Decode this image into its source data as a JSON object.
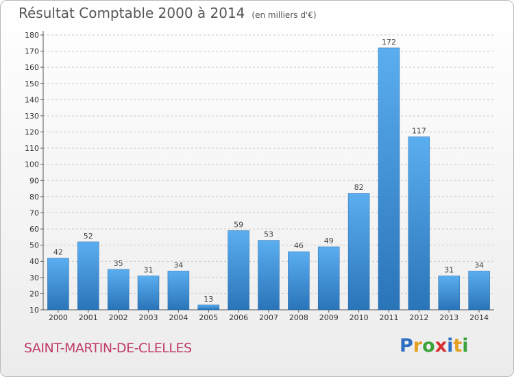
{
  "chart_data": {
    "type": "bar",
    "title": "Résultat Comptable 2000 à 2014",
    "unit": "(en milliers d'€)",
    "categories": [
      "2000",
      "2001",
      "2002",
      "2003",
      "2004",
      "2005",
      "2006",
      "2007",
      "2008",
      "2009",
      "2010",
      "2011",
      "2012",
      "2013",
      "2014"
    ],
    "values": [
      42,
      52,
      35,
      31,
      34,
      13,
      59,
      53,
      46,
      49,
      82,
      172,
      117,
      31,
      34
    ],
    "yticks": [
      10,
      20,
      30,
      40,
      50,
      60,
      70,
      80,
      90,
      100,
      110,
      120,
      130,
      140,
      150,
      160,
      170,
      180
    ],
    "ylim": [
      10,
      180
    ],
    "grid": true,
    "bar_color": "#4a9ee0"
  },
  "footer": {
    "town": "SAINT-MARTIN-DE-CLELLES",
    "logo_letters": [
      "P",
      "r",
      "o",
      "x",
      "i",
      "t",
      "i"
    ],
    "logo_colors": [
      "#2e6fc4",
      "#e6a020",
      "#3aa33a",
      "#d83030",
      "#2e6fc4",
      "#e6a020",
      "#3aa33a"
    ]
  }
}
